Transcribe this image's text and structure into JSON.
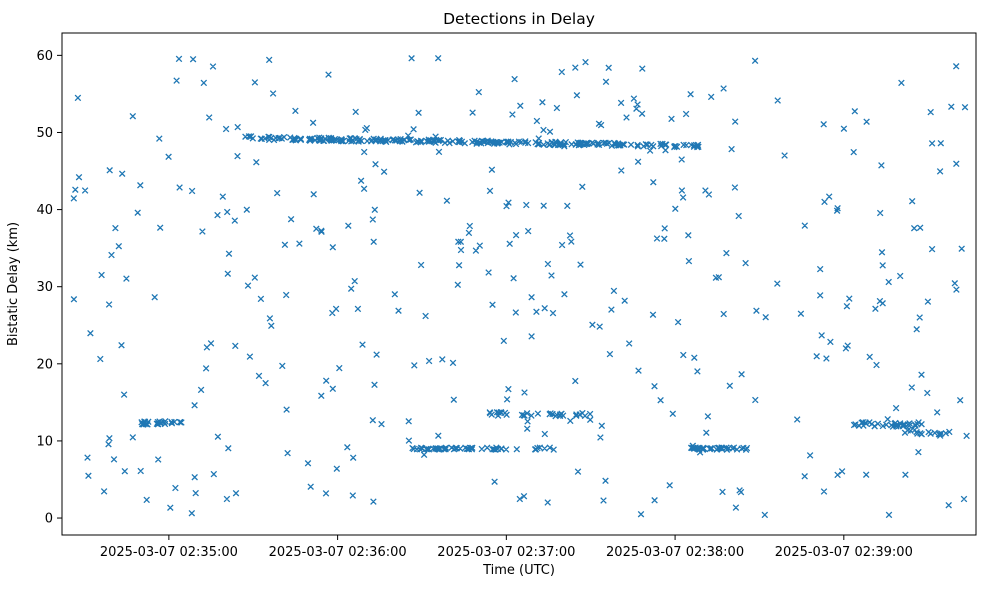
{
  "chart_data": {
    "type": "scatter",
    "title": "Detections in Delay",
    "xlabel": "Time (UTC)",
    "ylabel": "Bistatic Delay (km)",
    "marker": "x",
    "marker_color": "#1f77b4",
    "plot_background": "#ffffff",
    "grid": false,
    "x_axis": {
      "tick_labels": [
        "2025-03-07 02:35:00",
        "2025-03-07 02:36:00",
        "2025-03-07 02:37:00",
        "2025-03-07 02:38:00",
        "2025-03-07 02:39:00"
      ],
      "tick_seconds": [
        0,
        60,
        120,
        180,
        240
      ],
      "range_seconds": [
        -38,
        287
      ]
    },
    "y_axis": {
      "ticks": [
        0,
        10,
        20,
        30,
        40,
        50,
        60
      ],
      "range": [
        -2.2,
        62.9
      ]
    },
    "tracks": [
      {
        "name": "main-delay-track",
        "t_start": 27,
        "t_end": 163,
        "y_start": 49.3,
        "y_end": 48.4,
        "jitter": 0.22,
        "count": 230
      },
      {
        "name": "main-track-tail",
        "t_start": 164,
        "t_end": 190,
        "y_start": 48.4,
        "y_end": 48.2,
        "jitter": 0.2,
        "count": 26
      },
      {
        "name": "low-track-0235",
        "t_start": -10,
        "t_end": 5,
        "y_start": 12.3,
        "y_end": 12.4,
        "jitter": 0.2,
        "count": 28
      },
      {
        "name": "low-track-0236a",
        "t_start": 86,
        "t_end": 108,
        "y_start": 9.0,
        "y_end": 9.0,
        "jitter": 0.12,
        "count": 40
      },
      {
        "name": "low-track-0236b",
        "t_start": 110,
        "t_end": 137,
        "y_start": 9.0,
        "y_end": 9.0,
        "jitter": 0.15,
        "count": 18
      },
      {
        "name": "low-track-0237",
        "t_start": 114,
        "t_end": 150,
        "y_start": 13.5,
        "y_end": 13.4,
        "jitter": 0.25,
        "count": 32
      },
      {
        "name": "low-track-0238",
        "t_start": 185,
        "t_end": 206,
        "y_start": 9.0,
        "y_end": 9.0,
        "jitter": 0.15,
        "count": 35
      },
      {
        "name": "low-track-0239a",
        "t_start": 243,
        "t_end": 268,
        "y_start": 12.2,
        "y_end": 12.1,
        "jitter": 0.3,
        "count": 35
      },
      {
        "name": "low-track-0239b",
        "t_start": 258,
        "t_end": 276,
        "y_start": 11.2,
        "y_end": 11.0,
        "jitter": 0.35,
        "count": 15
      }
    ],
    "background_scatter": {
      "seed": 42,
      "count": 380,
      "t_min": -35,
      "t_max": 285,
      "y_min": 0.4,
      "y_max": 59.8
    }
  }
}
